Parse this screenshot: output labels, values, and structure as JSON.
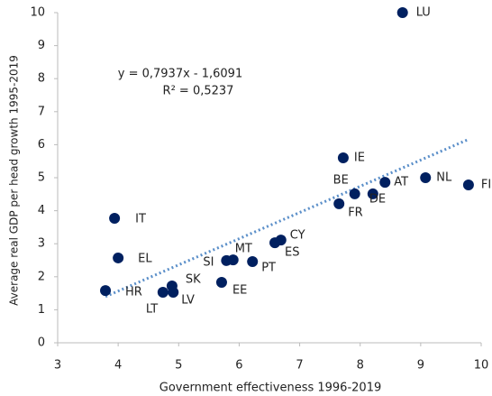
{
  "chart_data": {
    "type": "scatter",
    "x_label": "Government effectiveness 1996-2019",
    "y_label": "Average real GDP per head growth 1995-2019",
    "labels": [
      "LU",
      "IE",
      "NL",
      "FI",
      "AT",
      "BE",
      "DE",
      "FR",
      "IT",
      "CY",
      "ES",
      "MT",
      "SI",
      "PT",
      "EL",
      "SK",
      "LV",
      "LT",
      "EE",
      "HR"
    ],
    "x": [
      8.7,
      7.72,
      9.08,
      9.79,
      8.41,
      7.91,
      8.21,
      7.65,
      3.94,
      6.69,
      6.59,
      5.9,
      5.79,
      6.22,
      4.0,
      4.89,
      4.91,
      4.74,
      5.71,
      3.79
    ],
    "values": [
      10.0,
      5.6,
      5.0,
      4.78,
      4.86,
      4.51,
      4.51,
      4.21,
      3.77,
      3.11,
      3.03,
      2.51,
      2.49,
      2.46,
      2.57,
      1.72,
      1.53,
      1.53,
      1.83,
      1.58
    ],
    "color": "#002060",
    "trendline": {
      "slope": 0.7937,
      "intercept": -1.6091,
      "color": "#5b8fc9",
      "equation": "y = 0,7937x - 1,6091",
      "r2_label": "R² = 0,5237"
    },
    "xlim": [
      3,
      10
    ],
    "xticks": [
      3,
      4,
      5,
      6,
      7,
      8,
      9,
      10
    ],
    "ylim": [
      0,
      10
    ],
    "yticks": [
      0,
      1,
      2,
      3,
      4,
      5,
      6,
      7,
      8,
      9,
      10
    ]
  }
}
